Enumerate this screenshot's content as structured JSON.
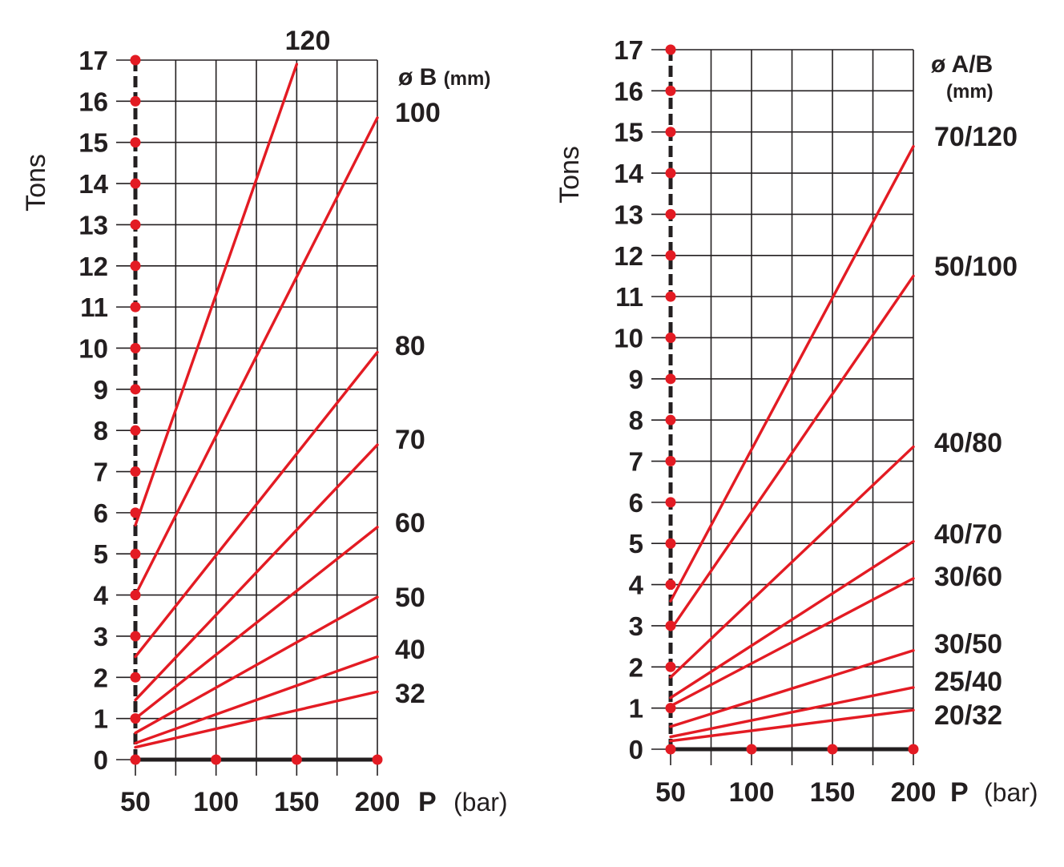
{
  "chart_data": [
    {
      "type": "line",
      "ylabel": "Tons",
      "xlabel_symbol": "P",
      "xlabel_unit": "(bar)",
      "legend_title": "ø B",
      "legend_unit": "(mm)",
      "x_ticks": [
        "50",
        "100",
        "150",
        "200"
      ],
      "y_ticks": [
        "0",
        "1",
        "2",
        "3",
        "4",
        "5",
        "6",
        "7",
        "8",
        "9",
        "10",
        "11",
        "12",
        "13",
        "14",
        "15",
        "16",
        "17"
      ],
      "xlim": [
        50,
        200
      ],
      "ylim": [
        0,
        17
      ],
      "series": [
        {
          "name": "120",
          "x": [
            50,
            150
          ],
          "values": [
            5.7,
            16.9
          ]
        },
        {
          "name": "100",
          "x": [
            50,
            200
          ],
          "values": [
            4.0,
            15.6
          ]
        },
        {
          "name": "80",
          "x": [
            50,
            200
          ],
          "values": [
            2.5,
            9.9
          ]
        },
        {
          "name": "70",
          "x": [
            50,
            200
          ],
          "values": [
            1.45,
            7.65
          ]
        },
        {
          "name": "60",
          "x": [
            50,
            200
          ],
          "values": [
            1.0,
            5.65
          ]
        },
        {
          "name": "50",
          "x": [
            50,
            200
          ],
          "values": [
            0.65,
            3.95
          ]
        },
        {
          "name": "40",
          "x": [
            50,
            200
          ],
          "values": [
            0.4,
            2.5
          ]
        },
        {
          "name": "32",
          "x": [
            50,
            200
          ],
          "values": [
            0.3,
            1.65
          ]
        }
      ]
    },
    {
      "type": "line",
      "ylabel": "Tons",
      "xlabel_symbol": "P",
      "xlabel_unit": "(bar)",
      "legend_title": "ø A/B",
      "legend_unit": "(mm)",
      "x_ticks": [
        "50",
        "100",
        "150",
        "200"
      ],
      "y_ticks": [
        "0",
        "1",
        "2",
        "3",
        "4",
        "5",
        "6",
        "7",
        "8",
        "9",
        "10",
        "11",
        "12",
        "13",
        "14",
        "15",
        "16",
        "17"
      ],
      "xlim": [
        50,
        200
      ],
      "ylim": [
        0,
        17
      ],
      "series": [
        {
          "name": "70/120",
          "x": [
            50,
            200
          ],
          "values": [
            3.6,
            14.65
          ]
        },
        {
          "name": "50/100",
          "x": [
            50,
            200
          ],
          "values": [
            2.9,
            11.5
          ]
        },
        {
          "name": "40/80",
          "x": [
            50,
            200
          ],
          "values": [
            1.75,
            7.35
          ]
        },
        {
          "name": "40/70",
          "x": [
            50,
            200
          ],
          "values": [
            1.25,
            5.05
          ]
        },
        {
          "name": "30/60",
          "x": [
            50,
            200
          ],
          "values": [
            1.05,
            4.15
          ]
        },
        {
          "name": "30/50",
          "x": [
            50,
            200
          ],
          "values": [
            0.55,
            2.4
          ]
        },
        {
          "name": "25/40",
          "x": [
            50,
            200
          ],
          "values": [
            0.3,
            1.5
          ]
        },
        {
          "name": "20/32",
          "x": [
            50,
            200
          ],
          "values": [
            0.2,
            0.95
          ]
        }
      ]
    }
  ],
  "colors": {
    "line": "#e31b23",
    "dot": "#e31b23",
    "grid": "#231f20",
    "axis": "#231f20",
    "text": "#231f20"
  }
}
